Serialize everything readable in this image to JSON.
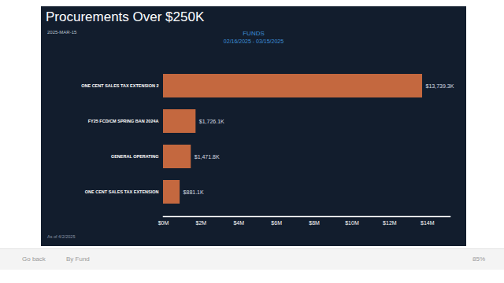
{
  "chart_data": {
    "type": "bar",
    "orientation": "horizontal",
    "title": "Procurements Over $250K",
    "subtitle": "FUNDS",
    "annotations": [
      "02/16/2025 - 03/15/2025",
      "2025-MAR-15",
      "As of 4/2/2025",
      "Go back",
      "By Fund",
      "85%"
    ],
    "categories": [
      "ONE CENT SALES TAX EXTENSION 2",
      "FY25 FCD/CM SPRING BAN 2024A",
      "GENERAL OPERATING",
      "ONE CENT SALES TAX EXTENSION"
    ],
    "values": [
      13.7393,
      1.7261,
      1.4718,
      0.8811
    ],
    "value_labels": [
      "$13,739.3K",
      "$1,726.1K",
      "$1,471.8K",
      "$881.1K"
    ],
    "data_labels": true,
    "color": "#c4683f",
    "xlim": [
      0,
      15.2
    ],
    "xticks": [
      {
        "value": 0,
        "label": "$0M"
      },
      {
        "value": 2,
        "label": "$2M"
      },
      {
        "value": 4,
        "label": "$4M"
      },
      {
        "value": 6,
        "label": "$6M"
      },
      {
        "value": 8,
        "label": "$8M"
      },
      {
        "value": 10,
        "label": "$10M"
      },
      {
        "value": 12,
        "label": "$12M"
      },
      {
        "value": 14,
        "label": "$14M"
      }
    ],
    "grid": false
  }
}
